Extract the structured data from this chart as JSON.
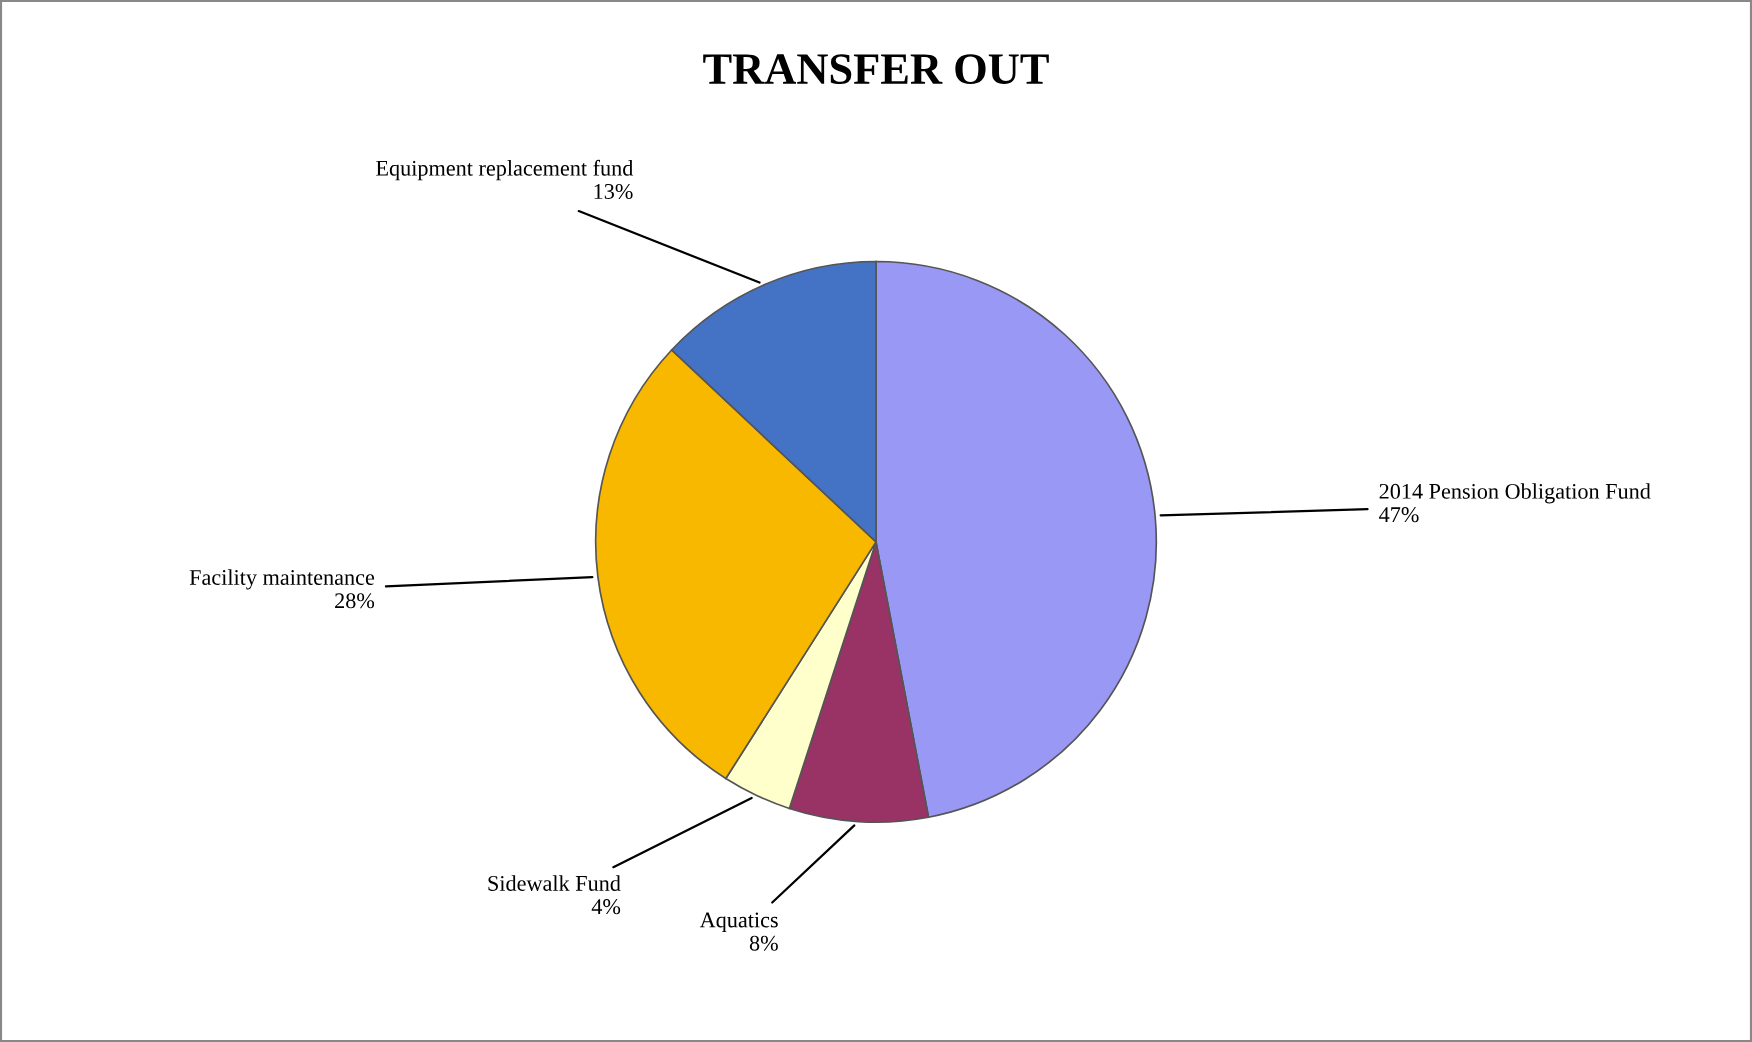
{
  "chart_data": {
    "type": "pie",
    "title": "TRANSFER OUT",
    "categories": [
      "2014 Pension Obligation Fund",
      "Aquatics",
      "Sidewalk Fund",
      "Facility maintenance",
      "Equipment replacement fund"
    ],
    "values": [
      47,
      8,
      4,
      28,
      13
    ],
    "colors": [
      "#9999f5",
      "#993366",
      "#ffffcc",
      "#f8b800",
      "#4472c4"
    ],
    "value_labels": [
      "47%",
      "8%",
      "4%",
      "28%",
      "13%"
    ],
    "legend": false
  }
}
